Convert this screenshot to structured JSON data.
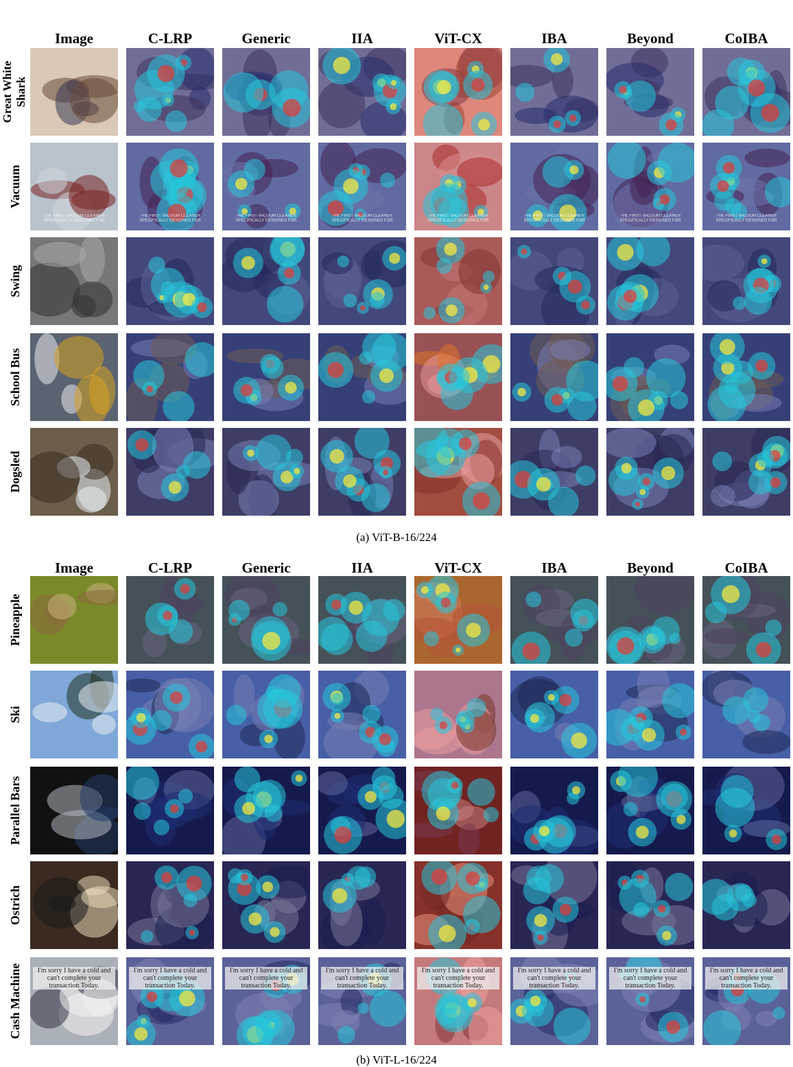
{
  "panels": [
    {
      "caption": "(a) ViT-B-16/224",
      "columns": [
        "Image",
        "C-LRP",
        "Generic",
        "IIA",
        "ViT-CX",
        "IBA",
        "Beyond",
        "CoIBA"
      ],
      "rows": [
        {
          "label": "Great White Shark",
          "overlay_text": ""
        },
        {
          "label": "Vacuum",
          "overlay_text": "THE FIRST VACUUM CLEANER SPECIFICALLY DESIGNED FOR"
        },
        {
          "label": "Swing",
          "overlay_text": ""
        },
        {
          "label": "School Bus",
          "overlay_text": ""
        },
        {
          "label": "Dogsled",
          "overlay_text": ""
        }
      ]
    },
    {
      "caption": "(b) ViT-L-16/224",
      "columns": [
        "Image",
        "C-LRP",
        "Generic",
        "IIA",
        "ViT-CX",
        "IBA",
        "Beyond",
        "CoIBA"
      ],
      "rows": [
        {
          "label": "Pineapple",
          "overlay_text": ""
        },
        {
          "label": "Ski",
          "overlay_text": ""
        },
        {
          "label": "Parallel Bars",
          "overlay_text": ""
        },
        {
          "label": "Ostrich",
          "overlay_text": ""
        },
        {
          "label": "Cash Machine",
          "overlay_text": "I'm sorry I have a cold and can't complete your transaction Today."
        }
      ]
    }
  ],
  "heatmap_colors": {
    "low": "#1a237e",
    "mid": "#26c6da",
    "high": "#e53935",
    "peak": "#ffeb3b"
  }
}
